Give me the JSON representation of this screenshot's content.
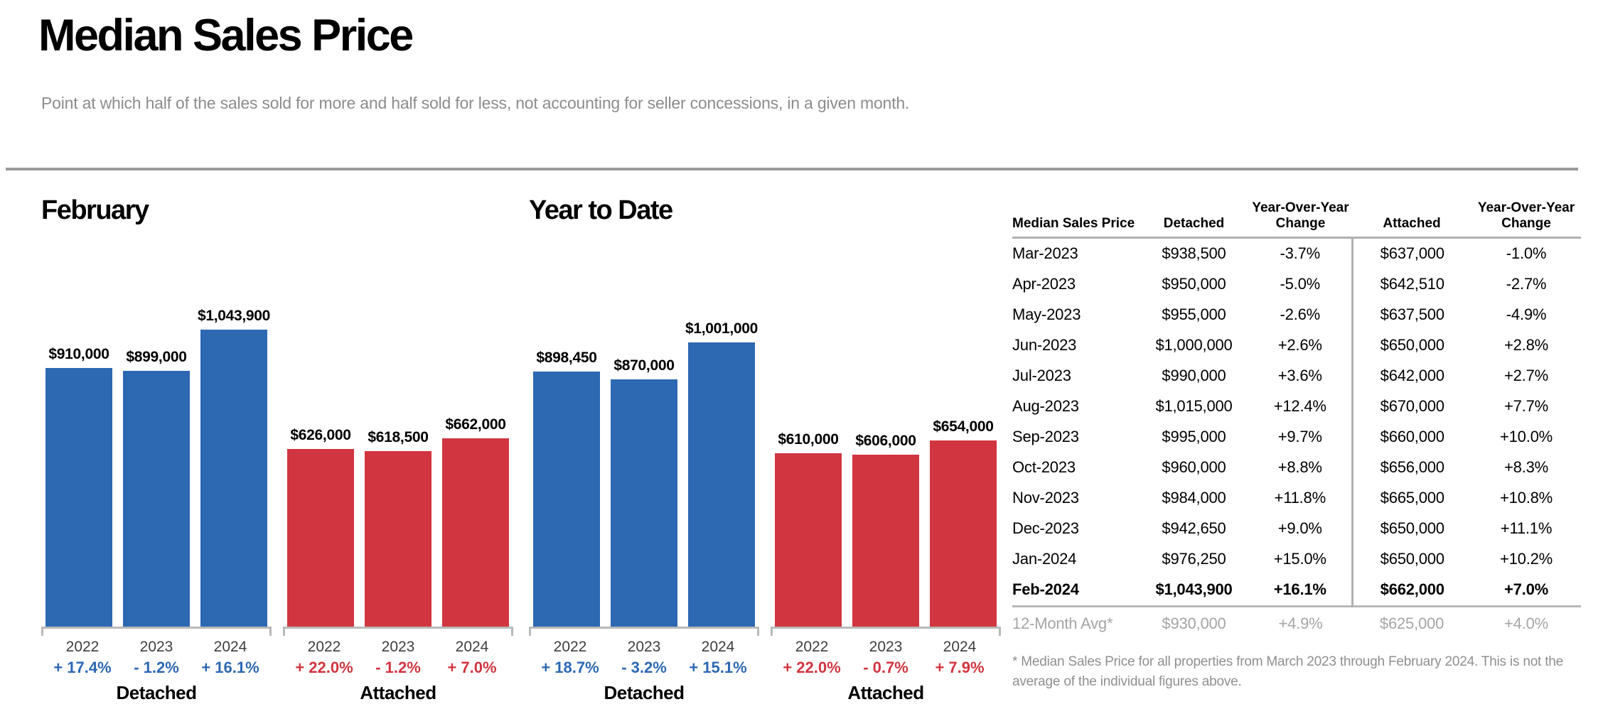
{
  "header": {
    "title": "Median Sales Price",
    "subtitle": "Point at which half of the sales sold for more and half sold for less, not accounting for seller concessions, in a given month."
  },
  "colors": {
    "detached_blue": "#2D68B2",
    "attached_red": "#D13540",
    "rule_gray": "#9b9b9b",
    "muted_gray": "#8c8c8c"
  },
  "chart_data": [
    {
      "type": "bar",
      "title": "February",
      "categories": [
        "2022",
        "2023",
        "2024"
      ],
      "ylim": [
        0,
        1100000
      ],
      "legend_position": "none",
      "grid": false,
      "series": [
        {
          "name": "Detached",
          "color": "#2D68B2",
          "values": [
            910000,
            899000,
            1043900
          ],
          "labels": [
            "$910,000",
            "$899,000",
            "$1,043,900"
          ],
          "changes": [
            "+ 17.4%",
            "- 1.2%",
            "+ 16.1%"
          ]
        },
        {
          "name": "Attached",
          "color": "#D13540",
          "values": [
            626000,
            618500,
            662000
          ],
          "labels": [
            "$626,000",
            "$618,500",
            "$662,000"
          ],
          "changes": [
            "+ 22.0%",
            "- 1.2%",
            "+ 7.0%"
          ]
        }
      ]
    },
    {
      "type": "bar",
      "title": "Year to Date",
      "categories": [
        "2022",
        "2023",
        "2024"
      ],
      "ylim": [
        0,
        1100000
      ],
      "legend_position": "none",
      "grid": false,
      "series": [
        {
          "name": "Detached",
          "color": "#2D68B2",
          "values": [
            898450,
            870000,
            1001000
          ],
          "labels": [
            "$898,450",
            "$870,000",
            "$1,001,000"
          ],
          "changes": [
            "+ 18.7%",
            "- 3.2%",
            "+ 15.1%"
          ]
        },
        {
          "name": "Attached",
          "color": "#D13540",
          "values": [
            610000,
            606000,
            654000
          ],
          "labels": [
            "$610,000",
            "$606,000",
            "$654,000"
          ],
          "changes": [
            "+ 22.0%",
            "- 0.7%",
            "+ 7.9%"
          ]
        }
      ]
    },
    {
      "type": "table",
      "headers": [
        "Median Sales Price",
        "Detached",
        "Year-Over-Year Change",
        "Attached",
        "Year-Over-Year Change"
      ],
      "rows": [
        [
          "Mar-2023",
          "$938,500",
          "-3.7%",
          "$637,000",
          "-1.0%"
        ],
        [
          "Apr-2023",
          "$950,000",
          "-5.0%",
          "$642,510",
          "-2.7%"
        ],
        [
          "May-2023",
          "$955,000",
          "-2.6%",
          "$637,500",
          "-4.9%"
        ],
        [
          "Jun-2023",
          "$1,000,000",
          "+2.6%",
          "$650,000",
          "+2.8%"
        ],
        [
          "Jul-2023",
          "$990,000",
          "+3.6%",
          "$642,000",
          "+2.7%"
        ],
        [
          "Aug-2023",
          "$1,015,000",
          "+12.4%",
          "$670,000",
          "+7.7%"
        ],
        [
          "Sep-2023",
          "$995,000",
          "+9.7%",
          "$660,000",
          "+10.0%"
        ],
        [
          "Oct-2023",
          "$960,000",
          "+8.8%",
          "$656,000",
          "+8.3%"
        ],
        [
          "Nov-2023",
          "$984,000",
          "+11.8%",
          "$665,000",
          "+10.8%"
        ],
        [
          "Dec-2023",
          "$942,650",
          "+9.0%",
          "$650,000",
          "+11.1%"
        ],
        [
          "Jan-2024",
          "$976,250",
          "+15.0%",
          "$650,000",
          "+10.2%"
        ],
        [
          "Feb-2024",
          "$1,043,900",
          "+16.1%",
          "$662,000",
          "+7.0%"
        ]
      ],
      "avg_row": [
        "12-Month Avg*",
        "$930,000",
        "+4.9%",
        "$625,000",
        "+4.0%"
      ],
      "footnote": "* Median Sales Price for all properties from March 2023 through February 2024. This is not the average of the individual figures above."
    }
  ]
}
